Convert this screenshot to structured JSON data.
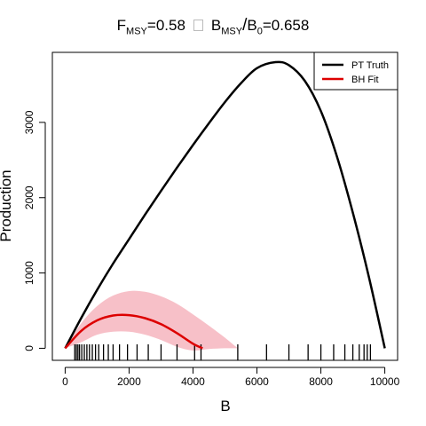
{
  "title": {
    "fmsy_prefix": "F",
    "fmsy_sub": "MSY",
    "fmsy_value": "=0.58",
    "ratio_b1": "B",
    "ratio_b1_sub": "MSY",
    "ratio_slash": "/",
    "ratio_b2": "B",
    "ratio_b2_sub": "0",
    "ratio_value": "=0.658"
  },
  "chart_data": {
    "type": "line",
    "xlabel": "B",
    "ylabel": "Production",
    "xlim": [
      -400,
      10400
    ],
    "ylim": [
      -160,
      3930
    ],
    "x_ticks": [
      0,
      2000,
      4000,
      6000,
      8000,
      10000
    ],
    "y_ticks": [
      0,
      1000,
      2000,
      3000
    ],
    "legend_position": "top-right",
    "series": [
      {
        "name": "PT Truth",
        "color": "#000000",
        "x": [
          0,
          500,
          1000,
          1500,
          2000,
          2500,
          3000,
          3500,
          4000,
          4500,
          5000,
          5500,
          6000,
          6580,
          7000,
          7500,
          8000,
          8500,
          9000,
          9500,
          10000
        ],
        "y": [
          0,
          400,
          775,
          1125,
          1450,
          1775,
          2090,
          2400,
          2700,
          2990,
          3270,
          3520,
          3720,
          3800,
          3760,
          3550,
          3150,
          2550,
          1800,
          950,
          0
        ]
      },
      {
        "name": "BH Fit",
        "color": "#dd0000",
        "x": [
          0,
          500,
          1000,
          1500,
          2000,
          2500,
          3000,
          3500,
          4000,
          4300
        ],
        "y": [
          0,
          230,
          370,
          435,
          440,
          400,
          320,
          200,
          60,
          0
        ]
      }
    ],
    "band": {
      "color": "#f7c0c8",
      "x": [
        0,
        500,
        1000,
        1500,
        2000,
        2500,
        3000,
        3500,
        4000,
        4500,
        5000,
        5400
      ],
      "upper": [
        0,
        330,
        560,
        700,
        760,
        750,
        690,
        590,
        450,
        300,
        140,
        0
      ],
      "lower": [
        0,
        80,
        180,
        220,
        220,
        180,
        110,
        20,
        -30,
        -10,
        0,
        0
      ]
    },
    "rug": [
      300,
      350,
      400,
      450,
      520,
      600,
      680,
      760,
      850,
      950,
      1050,
      1200,
      1350,
      1500,
      1700,
      1950,
      2250,
      2600,
      3000,
      3500,
      4050,
      4250,
      5400,
      6300,
      7000,
      7600,
      8000,
      8400,
      8750,
      9000,
      9200,
      9350,
      9450,
      9550
    ]
  }
}
